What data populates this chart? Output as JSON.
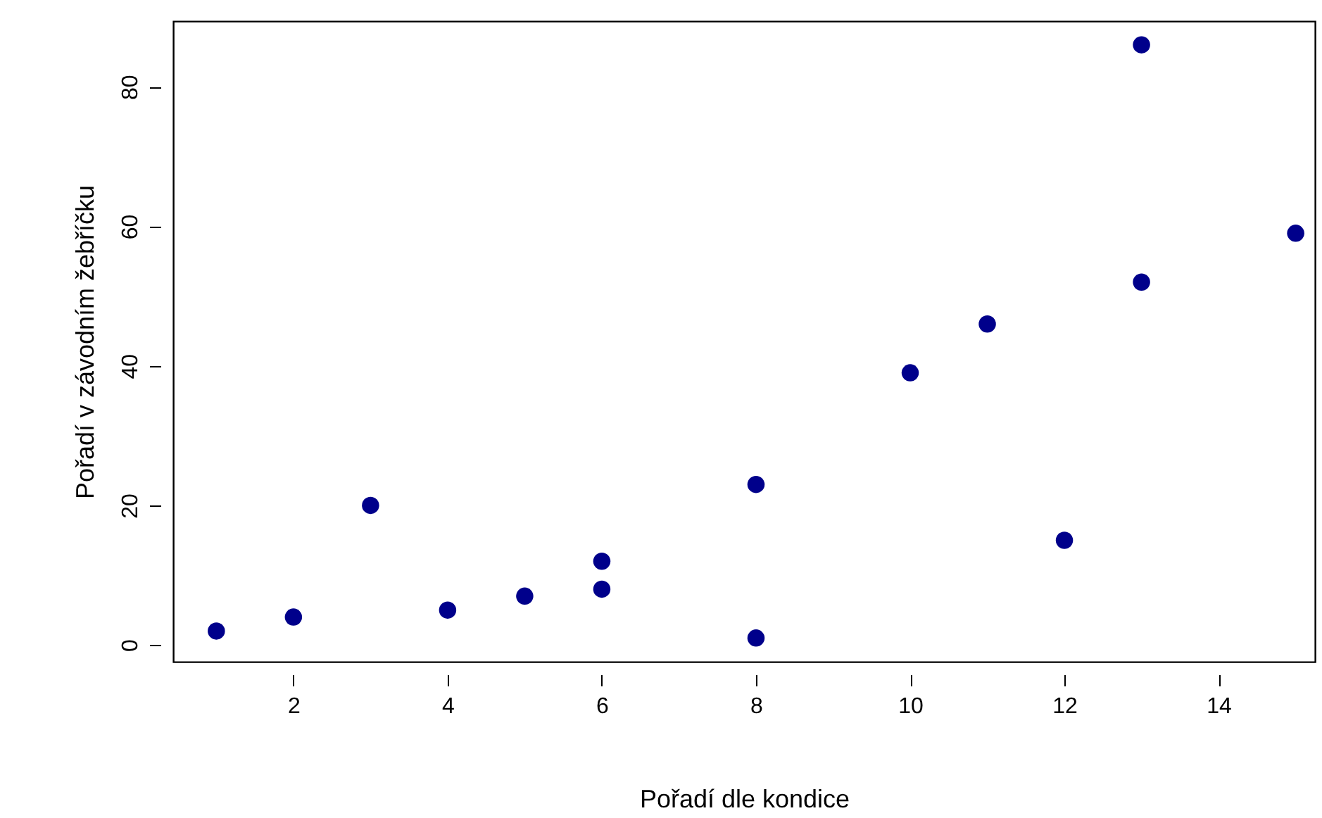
{
  "chart_data": {
    "type": "scatter",
    "xlabel": "Pořadí dle kondice",
    "ylabel": "Pořadí v závodním žebříčku",
    "x": [
      1,
      2,
      3,
      4,
      5,
      6,
      6,
      8,
      8,
      10,
      11,
      12,
      13,
      13,
      15
    ],
    "series": [
      {
        "color": "#00008b",
        "values": [
          2,
          4,
          20,
          5,
          7,
          12,
          8,
          23,
          1,
          39,
          46,
          15,
          86,
          52,
          59
        ]
      }
    ],
    "xlim": [
      0.44,
      15.25
    ],
    "ylim": [
      -2.4,
      89.4
    ],
    "xticks": [
      2,
      4,
      6,
      8,
      10,
      12,
      14
    ],
    "yticks": [
      0,
      20,
      40,
      60,
      80
    ],
    "grid": false,
    "marker": "circle"
  }
}
